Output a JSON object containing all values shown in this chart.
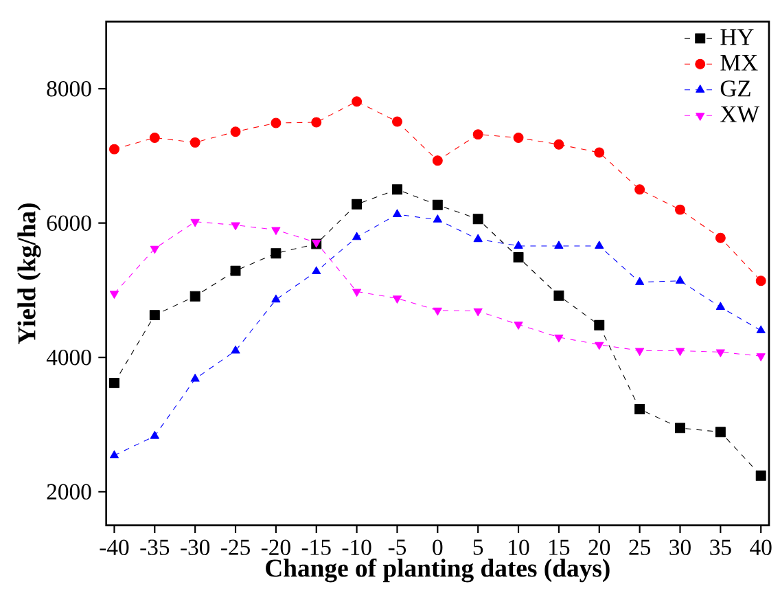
{
  "chart_data": {
    "type": "line",
    "xlabel": "Change of planting dates (days)",
    "ylabel": "Yield (kg/ha)",
    "x": [
      -40,
      -35,
      -30,
      -25,
      -20,
      -15,
      -10,
      -5,
      0,
      5,
      10,
      15,
      20,
      25,
      30,
      35,
      40
    ],
    "xlim": [
      -41,
      41
    ],
    "xticks": [
      -40,
      -35,
      -30,
      -25,
      -20,
      -15,
      -10,
      -5,
      0,
      5,
      10,
      15,
      20,
      25,
      30,
      35,
      40
    ],
    "ylim": [
      1500,
      9000
    ],
    "yticks": [
      2000,
      4000,
      6000,
      8000
    ],
    "grid": false,
    "legend": "top right",
    "line_style": "dashed",
    "series": [
      {
        "name": "HY",
        "color": "#000000",
        "marker": "square",
        "values": [
          3620,
          4630,
          4910,
          5290,
          5550,
          5690,
          6280,
          6500,
          6270,
          6060,
          5490,
          4920,
          4480,
          3230,
          2950,
          2890,
          2240
        ]
      },
      {
        "name": "MX",
        "color": "#ff0000",
        "marker": "circle",
        "values": [
          7100,
          7270,
          7200,
          7360,
          7490,
          7500,
          7810,
          7510,
          6930,
          7320,
          7270,
          7170,
          7050,
          6500,
          6200,
          5780,
          5140
        ]
      },
      {
        "name": "GZ",
        "color": "#0000ff",
        "marker": "triangle",
        "values": [
          2540,
          2830,
          3680,
          4100,
          4860,
          5280,
          5790,
          6130,
          6050,
          5760,
          5660,
          5660,
          5660,
          5120,
          5140,
          4750,
          4400
        ]
      },
      {
        "name": "XW",
        "color": "#ff00ff",
        "marker": "triangle down",
        "values": [
          4950,
          5620,
          6020,
          5970,
          5900,
          5710,
          4980,
          4880,
          4700,
          4690,
          4490,
          4300,
          4190,
          4100,
          4100,
          4080,
          4020
        ]
      }
    ]
  }
}
